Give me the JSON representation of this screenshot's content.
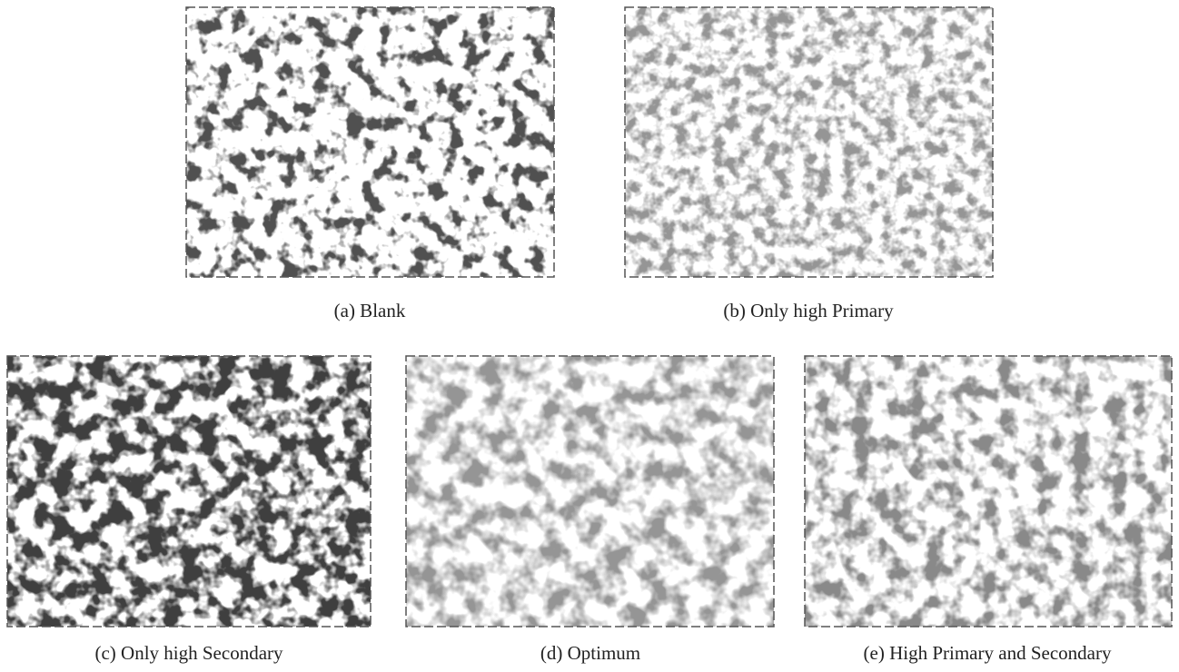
{
  "figure": {
    "panels": [
      {
        "caption": "(a) Blank"
      },
      {
        "caption": "(b) Only high Primary"
      },
      {
        "caption": "(c) Only high Secondary"
      },
      {
        "caption": "(d) Optimum"
      },
      {
        "caption": "(e) High Primary and Secondary"
      }
    ]
  }
}
